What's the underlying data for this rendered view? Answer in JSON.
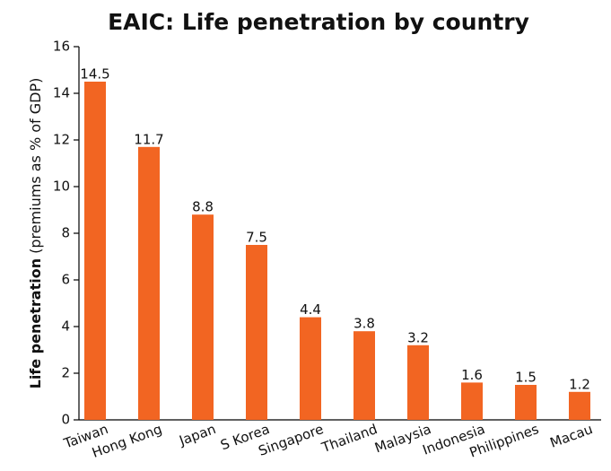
{
  "chart_data": {
    "type": "bar",
    "title": "EAIC: Life penetration by country",
    "ylabel": [
      "Life penetration",
      "(premiums as % of GDP)"
    ],
    "categories": [
      "Taiwan",
      "Hong Kong",
      "Japan",
      "S Korea",
      "Singapore",
      "Thailand",
      "Malaysia",
      "Indonesia",
      "Philippines",
      "Macau"
    ],
    "values": [
      14.5,
      11.7,
      8.8,
      7.5,
      4.4,
      3.8,
      3.2,
      1.6,
      1.5,
      1.2
    ],
    "color": "#f26522",
    "ylim": [
      0,
      16
    ],
    "yticks": [
      0,
      2,
      4,
      6,
      8,
      10,
      12,
      14,
      16
    ],
    "grid": false
  }
}
